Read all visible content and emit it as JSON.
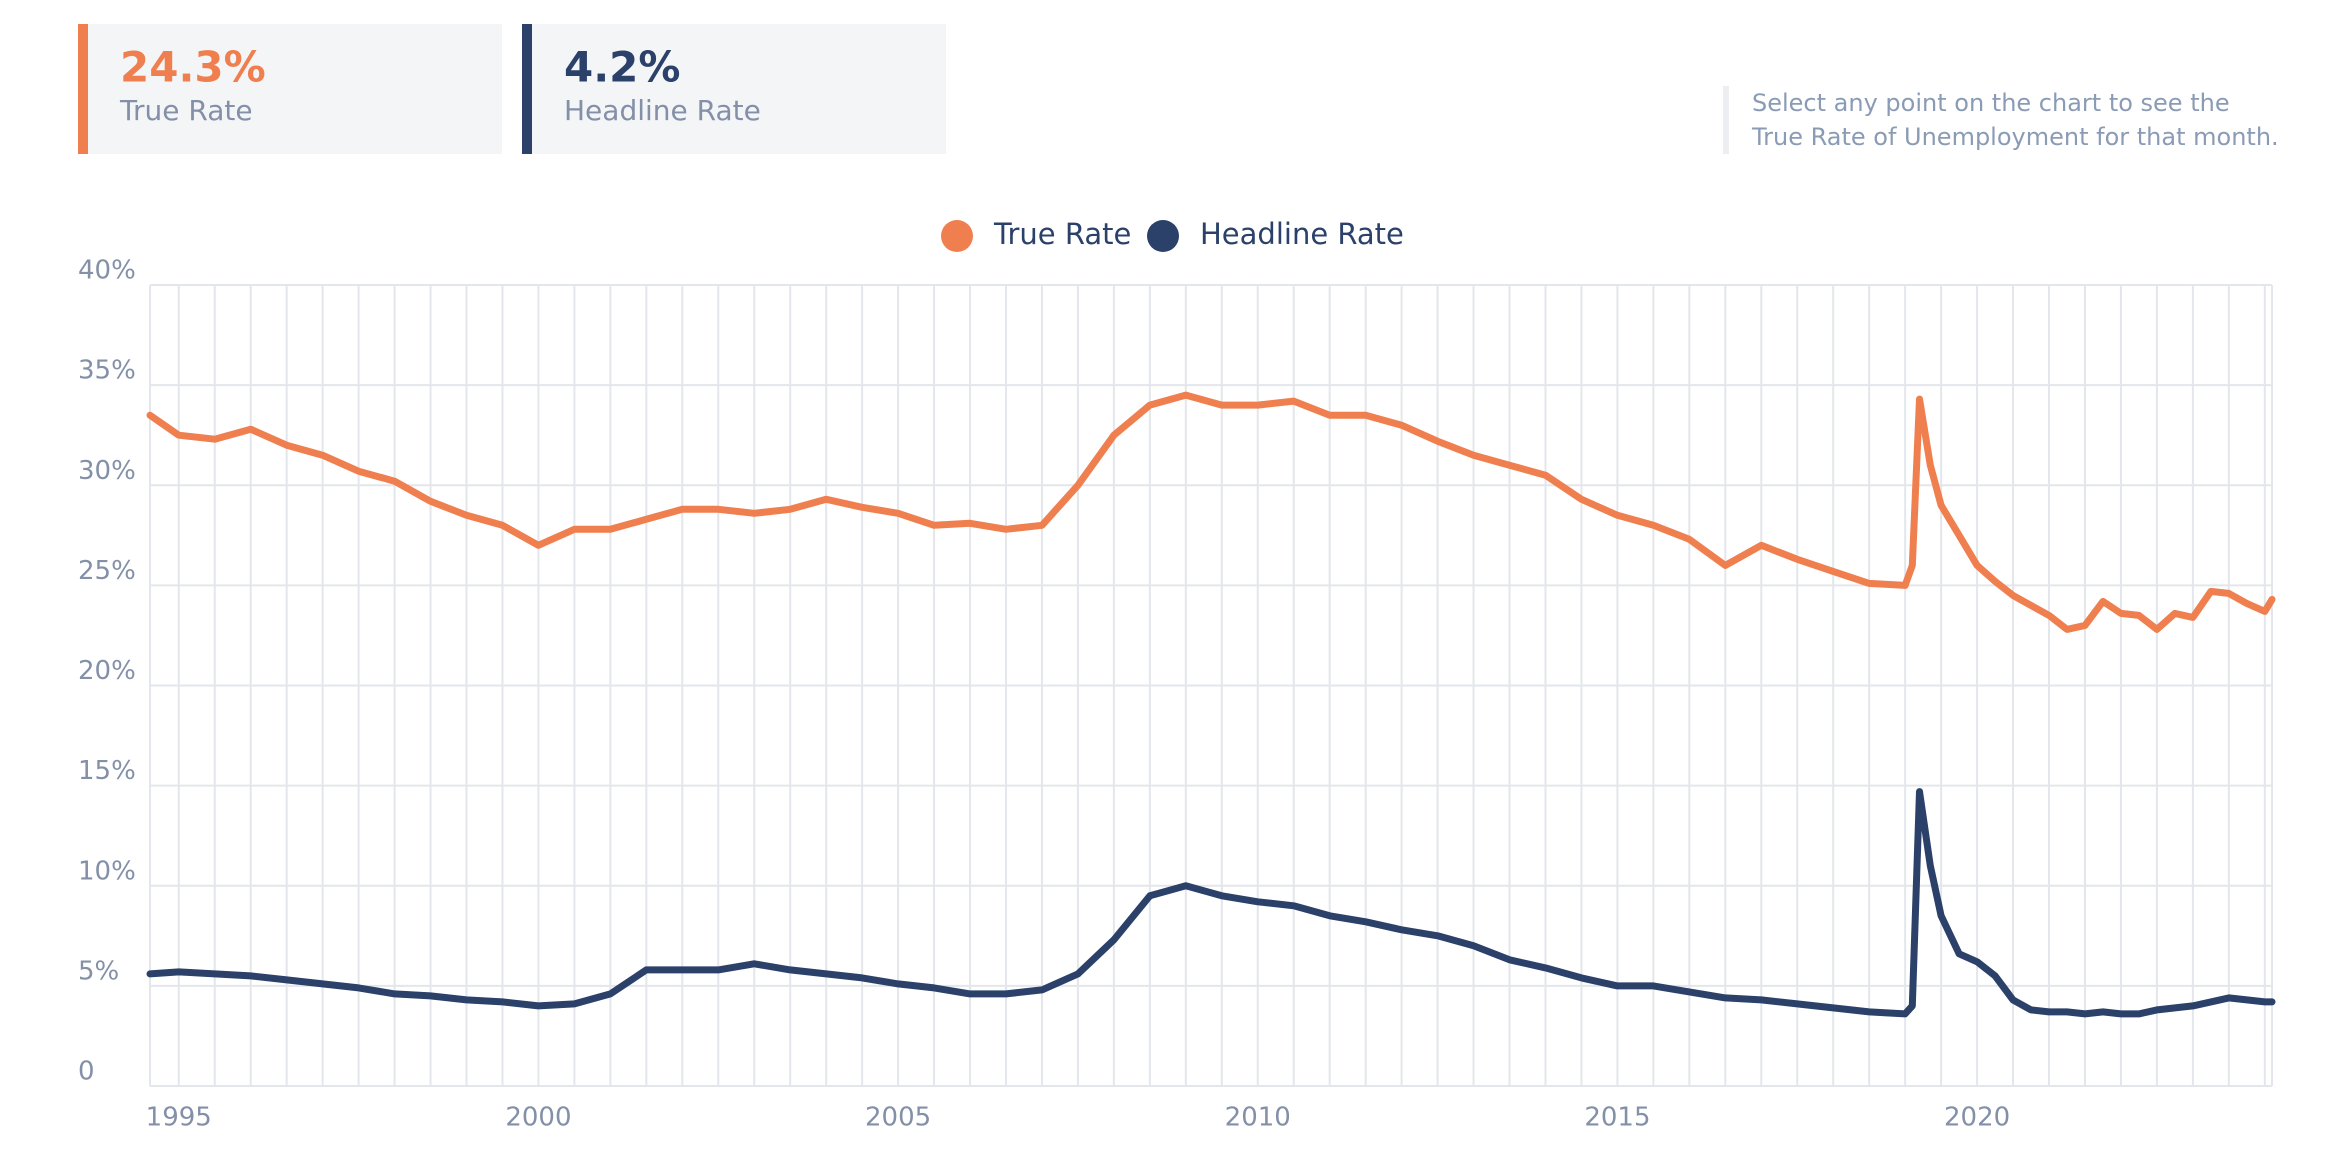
{
  "header": {
    "cards": [
      {
        "value": "24.3%",
        "label": "True Rate"
      },
      {
        "value": "4.2%",
        "label": "Headline Rate"
      }
    ],
    "note": [
      "Select any point on the chart to see the",
      "True Rate of Unemployment for that month."
    ]
  },
  "chart_data": {
    "type": "line",
    "x": [
      1994.6,
      1995,
      1995.5,
      1996,
      1996.5,
      1997,
      1997.5,
      1998,
      1998.5,
      1999,
      1999.5,
      2000,
      2000.5,
      2001,
      2001.5,
      2002,
      2002.5,
      2003,
      2003.5,
      2004,
      2004.5,
      2005,
      2005.5,
      2006,
      2006.5,
      2007,
      2007.5,
      2008,
      2008.5,
      2009,
      2009.5,
      2010,
      2010.5,
      2011,
      2011.5,
      2012,
      2012.5,
      2013,
      2013.5,
      2014,
      2014.5,
      2015,
      2015.5,
      2016,
      2016.5,
      2017,
      2017.5,
      2018,
      2018.5,
      2019,
      2019.1,
      2019.2,
      2019.35,
      2019.5,
      2019.75,
      2020,
      2020.25,
      2020.5,
      2020.75,
      2021,
      2021.25,
      2021.5,
      2021.75,
      2022,
      2022.25,
      2022.5,
      2022.75,
      2023,
      2023.25,
      2023.5,
      2023.75,
      2024,
      2024.1
    ],
    "series": [
      {
        "name": "True Rate",
        "color": "#f07f4f",
        "values": [
          33.5,
          32.5,
          32.3,
          32.8,
          32,
          31.5,
          30.7,
          30.2,
          29.2,
          28.5,
          28,
          27,
          27.8,
          27.8,
          28.3,
          28.8,
          28.8,
          28.6,
          28.8,
          29.3,
          28.9,
          28.6,
          28,
          28.1,
          27.8,
          28,
          30,
          32.5,
          34,
          34.5,
          34,
          34,
          34.2,
          33.5,
          33.5,
          33,
          32.2,
          31.5,
          31,
          30.5,
          29.3,
          28.5,
          28,
          27.3,
          26,
          27,
          26.3,
          25.7,
          25.1,
          25,
          26,
          34.3,
          31,
          29,
          27.5,
          26,
          25.2,
          24.5,
          24,
          23.5,
          22.8,
          23,
          24.2,
          23.6,
          23.5,
          22.8,
          23.6,
          23.4,
          24.7,
          24.6,
          24.1,
          23.7,
          24.3
        ]
      },
      {
        "name": "Headline Rate",
        "color": "#2b4169",
        "values": [
          5.6,
          5.7,
          5.6,
          5.5,
          5.3,
          5.1,
          4.9,
          4.6,
          4.5,
          4.3,
          4.2,
          4.0,
          4.1,
          4.6,
          5.8,
          5.8,
          5.8,
          6.1,
          5.8,
          5.6,
          5.4,
          5.1,
          4.9,
          4.6,
          4.6,
          4.8,
          5.6,
          7.3,
          9.5,
          10,
          9.5,
          9.2,
          9,
          8.5,
          8.2,
          7.8,
          7.5,
          7,
          6.3,
          5.9,
          5.4,
          5,
          5,
          4.7,
          4.4,
          4.3,
          4.1,
          3.9,
          3.7,
          3.6,
          4,
          14.7,
          11,
          8.5,
          6.6,
          6.2,
          5.5,
          4.3,
          3.8,
          3.7,
          3.7,
          3.6,
          3.7,
          3.6,
          3.6,
          3.8,
          3.9,
          4,
          4.2,
          4.4,
          4.3,
          4.2,
          4.2
        ]
      }
    ],
    "xlim": [
      1994.6,
      2024.1
    ],
    "xticks": [
      1995,
      2000,
      2005,
      2010,
      2015,
      2020
    ],
    "xgrid": [
      1995,
      1995.5,
      1996,
      1996.5,
      1997,
      1997.5,
      1998,
      1998.5,
      1999,
      1999.5,
      2000,
      2000.5,
      2001,
      2001.5,
      2002,
      2002.5,
      2003,
      2003.5,
      2004,
      2004.5,
      2005,
      2005.5,
      2006,
      2006.5,
      2007,
      2007.5,
      2008,
      2008.5,
      2009,
      2009.5,
      2010,
      2010.5,
      2011,
      2011.5,
      2012,
      2012.5,
      2013,
      2013.5,
      2014,
      2014.5,
      2015,
      2015.5,
      2016,
      2016.5,
      2017,
      2017.5,
      2018,
      2018.5,
      2019,
      2019.5,
      2020,
      2020.5,
      2021,
      2021.5,
      2022,
      2022.5,
      2023,
      2023.5,
      2024
    ],
    "ylim": [
      0,
      40
    ],
    "yticks": [
      0,
      {
        "value": 5,
        "label": "5%"
      },
      {
        "value": 10,
        "label": "10%"
      },
      {
        "value": 15,
        "label": "15%"
      },
      {
        "value": 20,
        "label": "20%"
      },
      {
        "value": 25,
        "label": "25%"
      },
      {
        "value": 30,
        "label": "30%"
      },
      {
        "value": 35,
        "label": "35%"
      },
      {
        "value": 40,
        "label": "40%"
      }
    ],
    "grid": true
  }
}
